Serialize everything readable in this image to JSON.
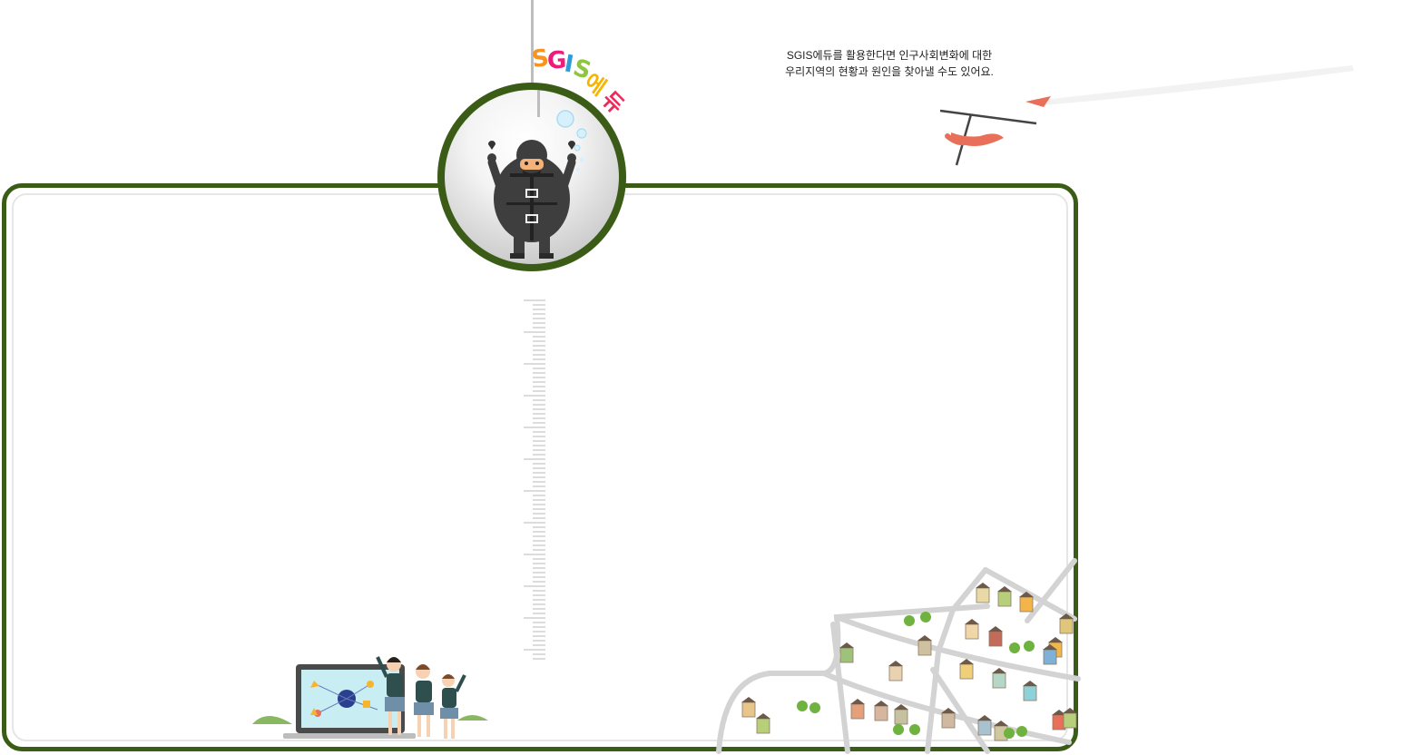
{
  "brand": {
    "logo_letters": [
      {
        "char": "S",
        "color": "#f7931e"
      },
      {
        "char": "G",
        "color": "#ed1c7b"
      },
      {
        "char": "I",
        "color": "#2e9ad6"
      },
      {
        "char": "S",
        "color": "#8dc63f"
      },
      {
        "char": "에",
        "color": "#f7b500"
      },
      {
        "char": "듀",
        "color": "#ee2a5b"
      }
    ],
    "frame_color": "#3b5c17",
    "accent_coral": "#e8705a"
  },
  "intro": {
    "line1": "SGIS에듀를 활용한다면 인구사회변화에 대한",
    "line2": "우리지역의 현황과 원인을 찾아낼 수도 있어요."
  },
  "icons": {
    "hero": "diver-character-icon",
    "glider": "hang-glider-icon",
    "students": "students-with-laptop-icon",
    "map": "town-map-illustration-icon"
  }
}
